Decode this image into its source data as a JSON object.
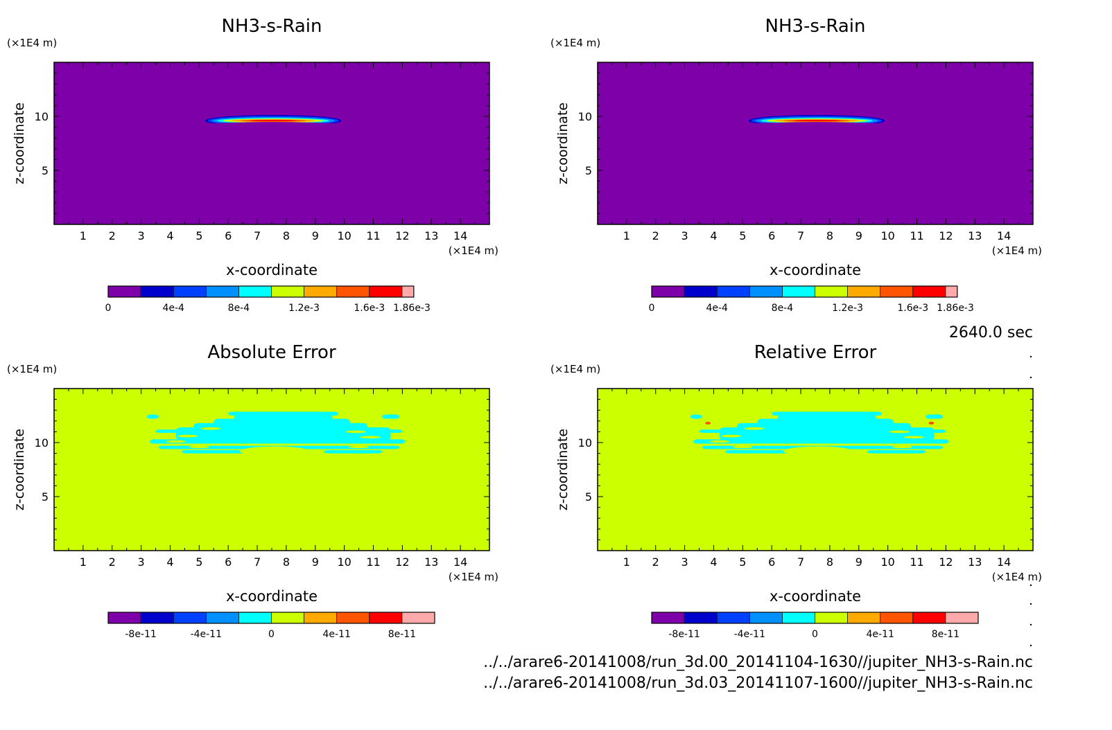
{
  "colors": {
    "levels10": [
      "#7d00a8",
      "#0000cc",
      "#0040ff",
      "#0090ff",
      "#00ffff",
      "#ccff00",
      "#ffaa00",
      "#ff5500",
      "#ff0000",
      "#ffaaaa"
    ],
    "field_background": "#7d00a8",
    "error_background": "#ccff00",
    "error_patch": "#00ffff"
  },
  "time_label": "2640.0 sec",
  "files": [
    "../../arare6-20141008/run_3d.00_20141104-1630//jupiter_NH3-s-Rain.nc",
    "../../arare6-20141008/run_3d.03_20141107-1600//jupiter_NH3-s-Rain.nc"
  ],
  "chart_data": [
    {
      "type": "heatmap",
      "title": "NH3-s-Rain",
      "xlabel": "x-coordinate",
      "ylabel": "z-coordinate",
      "x_unit": "(×1E4 m)",
      "y_unit": "(×1E4 m)",
      "xlim": [
        0,
        15
      ],
      "ylim": [
        0,
        15
      ],
      "x_ticks": [
        "1",
        "2",
        "3",
        "4",
        "5",
        "6",
        "7",
        "8",
        "9",
        "10",
        "11",
        "12",
        "13",
        "14"
      ],
      "y_ticks": [
        "5",
        "10"
      ],
      "colorbar": {
        "min": 0,
        "max": 0.00186,
        "ticks": [
          "0",
          "4e-4",
          "8e-4",
          "1.2e-3",
          "1.6e-3",
          "1.86e-3"
        ]
      },
      "features": [
        {
          "x_range": [
            5.2,
            9.9
          ],
          "z_center": 9.6,
          "z_thickness": 0.8,
          "peak": 0.00186
        }
      ]
    },
    {
      "type": "heatmap",
      "title": "NH3-s-Rain",
      "xlabel": "x-coordinate",
      "ylabel": "z-coordinate",
      "x_unit": "(×1E4 m)",
      "y_unit": "(×1E4 m)",
      "xlim": [
        0,
        15
      ],
      "ylim": [
        0,
        15
      ],
      "x_ticks": [
        "1",
        "2",
        "3",
        "4",
        "5",
        "6",
        "7",
        "8",
        "9",
        "10",
        "11",
        "12",
        "13",
        "14"
      ],
      "y_ticks": [
        "5",
        "10"
      ],
      "colorbar": {
        "min": 0,
        "max": 0.00186,
        "ticks": [
          "0",
          "4e-4",
          "8e-4",
          "1.2e-3",
          "1.6e-3",
          "1.86e-3"
        ]
      },
      "features": [
        {
          "x_range": [
            5.2,
            9.9
          ],
          "z_center": 9.6,
          "z_thickness": 0.8,
          "peak": 0.00186
        }
      ]
    },
    {
      "type": "heatmap",
      "title": "Absolute Error",
      "xlabel": "x-coordinate",
      "ylabel": "z-coordinate",
      "x_unit": "(×1E4 m)",
      "y_unit": "(×1E4 m)",
      "xlim": [
        0,
        15
      ],
      "ylim": [
        0,
        15
      ],
      "x_ticks": [
        "1",
        "2",
        "3",
        "4",
        "5",
        "6",
        "7",
        "8",
        "9",
        "10",
        "11",
        "12",
        "13",
        "14"
      ],
      "y_ticks": [
        "5",
        "10"
      ],
      "colorbar": {
        "min": -1e-10,
        "max": 1e-10,
        "ticks": [
          "-8e-11",
          "-4e-11",
          "0",
          "4e-11",
          "8e-11"
        ]
      },
      "features": [
        {
          "x_range": [
            3.3,
            11.9
          ],
          "z_range": [
            9.0,
            12.8
          ],
          "value": -1e-11
        }
      ]
    },
    {
      "type": "heatmap",
      "title": "Relative Error",
      "xlabel": "x-coordinate",
      "ylabel": "z-coordinate",
      "x_unit": "(×1E4 m)",
      "y_unit": "(×1E4 m)",
      "xlim": [
        0,
        15
      ],
      "ylim": [
        0,
        15
      ],
      "x_ticks": [
        "1",
        "2",
        "3",
        "4",
        "5",
        "6",
        "7",
        "8",
        "9",
        "10",
        "11",
        "12",
        "13",
        "14"
      ],
      "y_ticks": [
        "5",
        "10"
      ],
      "colorbar": {
        "min": -1e-10,
        "max": 1e-10,
        "ticks": [
          "-8e-11",
          "-4e-11",
          "0",
          "4e-11",
          "8e-11"
        ]
      },
      "features": [
        {
          "x_range": [
            3.3,
            11.9
          ],
          "z_range": [
            9.0,
            12.8
          ],
          "value": -1e-11
        }
      ]
    }
  ]
}
